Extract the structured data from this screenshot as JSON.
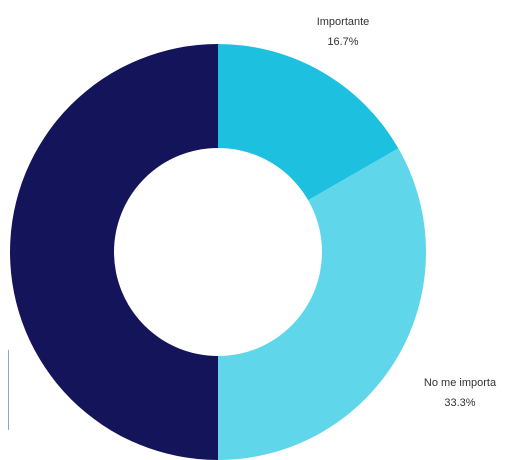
{
  "chart_data": {
    "type": "pie",
    "donut": true,
    "title": "",
    "slices": [
      {
        "label": "Importante",
        "value": 16.7,
        "value_label": "16.7%",
        "color": "#1ec0e0"
      },
      {
        "label": "No me importa",
        "value": 33.3,
        "value_label": "33.3%",
        "color": "#5fd6ea"
      },
      {
        "label": "",
        "value": 50.0,
        "value_label": "",
        "color": "#14145a"
      }
    ],
    "legend": "none"
  }
}
